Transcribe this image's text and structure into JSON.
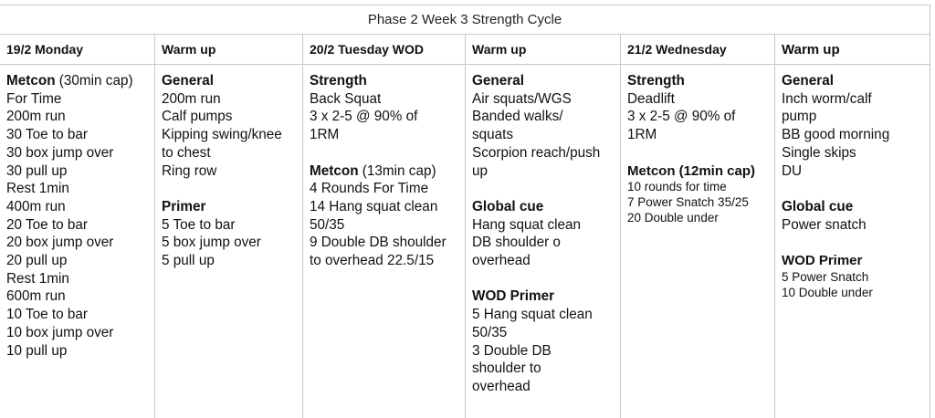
{
  "title": "Phase 2 Week 3 Strength Cycle",
  "columns": [
    {
      "header": "19/2 Monday",
      "blocks": [
        {
          "heading": "Metcon",
          "suffix": " (30min cap)",
          "lines": [
            "For Time",
            "200m run",
            "30 Toe to bar",
            "30 box jump over",
            "30 pull up",
            "Rest 1min",
            "400m run",
            "20 Toe to bar",
            "20 box jump over",
            "20 pull up",
            "Rest 1min",
            "600m run",
            "10 Toe to bar",
            "10 box jump over",
            "10 pull up"
          ]
        }
      ]
    },
    {
      "header": "Warm up",
      "blocks": [
        {
          "heading": "General",
          "lines": [
            "200m run",
            "Calf pumps",
            "Kipping swing/knee",
            "to chest",
            "Ring row"
          ]
        },
        {
          "heading": "Primer",
          "lines": [
            "5 Toe to bar",
            "5 box jump over",
            "5 pull up"
          ]
        }
      ]
    },
    {
      "header": "20/2 Tuesday WOD",
      "blocks": [
        {
          "heading": "Strength",
          "lines": [
            "Back Squat",
            "3 x 2-5 @ 90% of",
            "1RM"
          ]
        },
        {
          "heading": "Metcon",
          "suffix": " (13min cap)",
          "lines": [
            "4 Rounds For Time",
            "14 Hang squat clean",
            "50/35",
            "9 Double DB shoulder",
            "to overhead 22.5/15"
          ]
        }
      ]
    },
    {
      "header": "Warm up",
      "blocks": [
        {
          "heading": "General",
          "lines": [
            "Air squats/WGS",
            "Banded walks/",
            "squats",
            "Scorpion reach/push",
            "up"
          ]
        },
        {
          "heading": "Global cue",
          "lines": [
            "Hang squat clean",
            "DB shoulder o",
            "overhead"
          ]
        },
        {
          "heading": "WOD Primer",
          "lines": [
            "5 Hang squat clean",
            "50/35",
            "3 Double DB",
            "shoulder to",
            "overhead"
          ]
        }
      ]
    },
    {
      "header": "21/2 Wednesday",
      "blocks": [
        {
          "heading": "Strength",
          "lines": [
            "Deadlift",
            "3 x 2-5 @ 90% of",
            "1RM"
          ]
        },
        {
          "heading": "Metcon (12min cap)",
          "small": true,
          "lines": [
            "10 rounds for time",
            "7 Power Snatch 35/25",
            "20 Double under"
          ]
        }
      ]
    },
    {
      "header": "Warm up",
      "header_big": true,
      "blocks": [
        {
          "heading": "General",
          "lines": [
            "Inch worm/calf",
            "pump",
            "BB good morning",
            "Single skips",
            "DU"
          ]
        },
        {
          "heading": "Global cue",
          "lines": [
            "Power snatch"
          ]
        },
        {
          "heading": "WOD Primer",
          "small": true,
          "lines": [
            "5 Power Snatch",
            "10 Double under"
          ]
        }
      ]
    }
  ]
}
